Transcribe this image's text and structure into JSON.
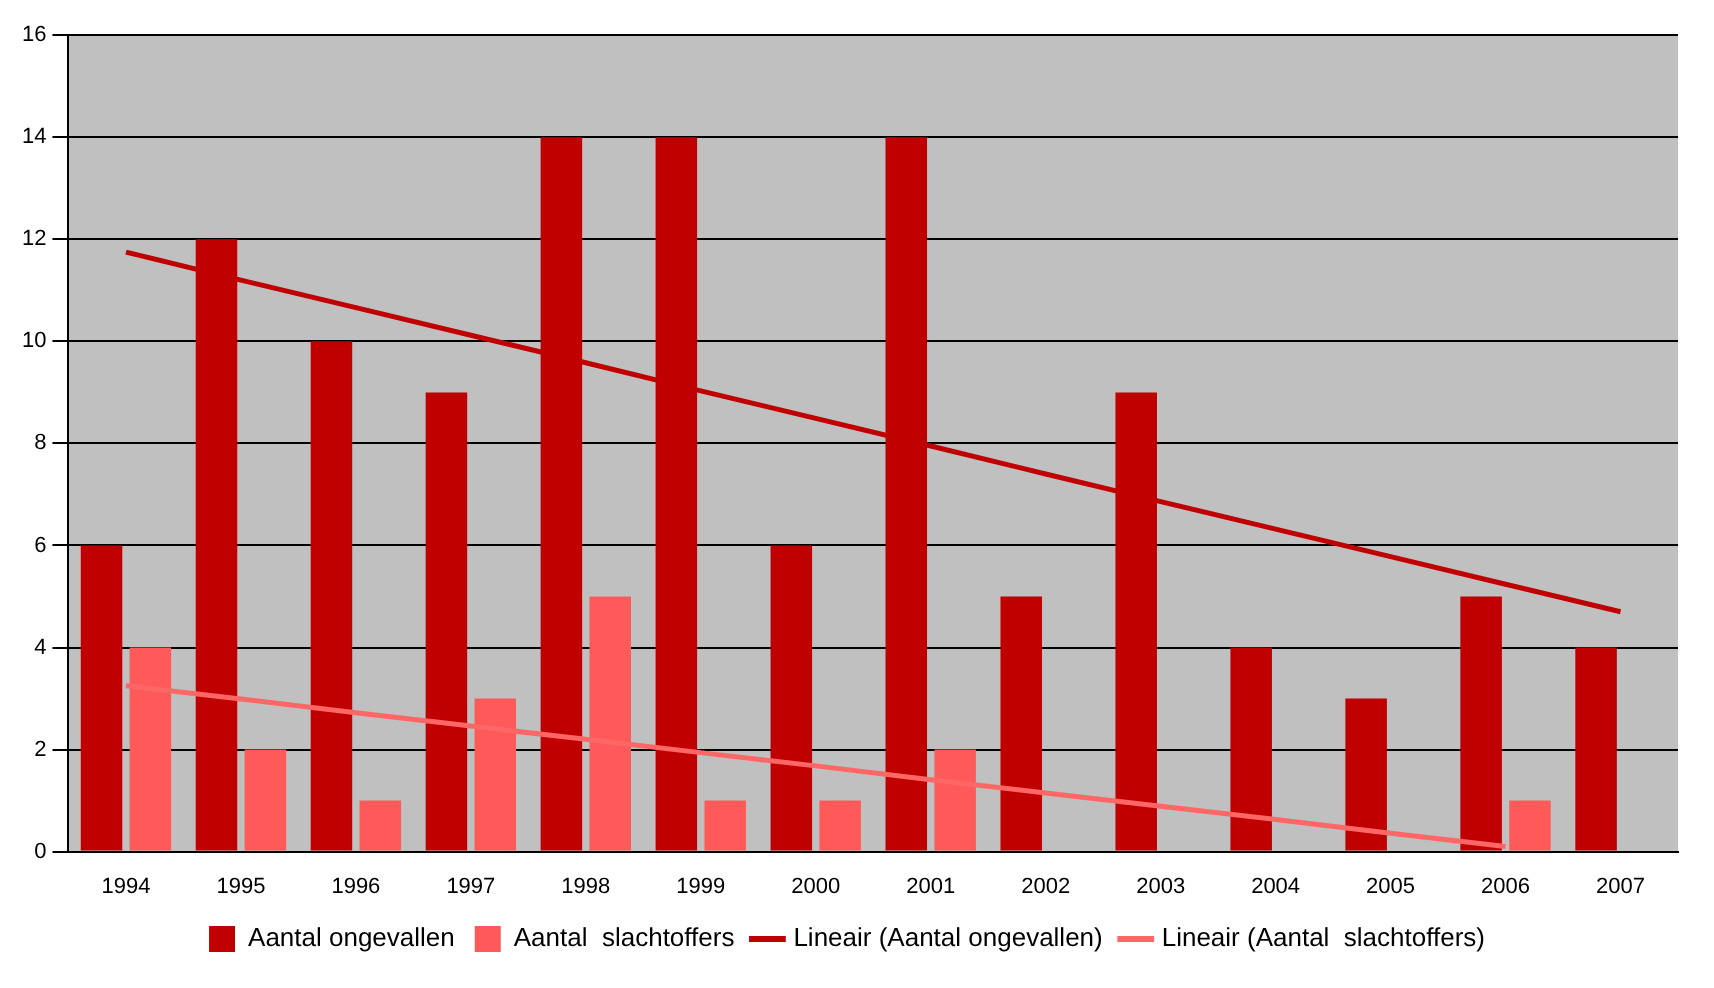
{
  "chart_data": {
    "type": "bar",
    "categories": [
      "1994",
      "1995",
      "1996",
      "1997",
      "1998",
      "1999",
      "2000",
      "2001",
      "2002",
      "2003",
      "2004",
      "2005",
      "2006",
      "2007"
    ],
    "series": [
      {
        "name": "Aantal ongevallen",
        "color": "#c00000",
        "values": [
          6,
          12,
          10,
          9,
          14,
          14,
          6,
          14,
          5,
          9,
          4,
          3,
          5,
          4
        ]
      },
      {
        "name": "Aantal  slachtoffers",
        "color": "#ff5a5a",
        "values": [
          4,
          2,
          1,
          3,
          5,
          1,
          1,
          2,
          0,
          0,
          0,
          0,
          1,
          0
        ]
      },
      {
        "name": "Lineair (Aantal ongevallen)",
        "type": "line",
        "color": "#c00000",
        "values": [
          11.75,
          11.2,
          10.66,
          10.12,
          9.58,
          9.03,
          8.49,
          7.95,
          7.4,
          6.86,
          6.32,
          5.78,
          5.24,
          4.7
        ]
      },
      {
        "name": "Lineair (Aantal  slachtoffers)",
        "type": "line",
        "color": "#ff6666",
        "values": [
          3.25,
          2.99,
          2.72,
          2.46,
          2.2,
          1.94,
          1.68,
          1.41,
          1.15,
          0.89,
          0.63,
          0.36,
          0.1,
          null
        ]
      }
    ],
    "ylim": [
      0,
      16
    ],
    "yticks": [
      0,
      2,
      4,
      6,
      8,
      10,
      12,
      14,
      16
    ],
    "grid": "y",
    "legend": "bottom",
    "marker": "none",
    "line_style": "solid"
  }
}
